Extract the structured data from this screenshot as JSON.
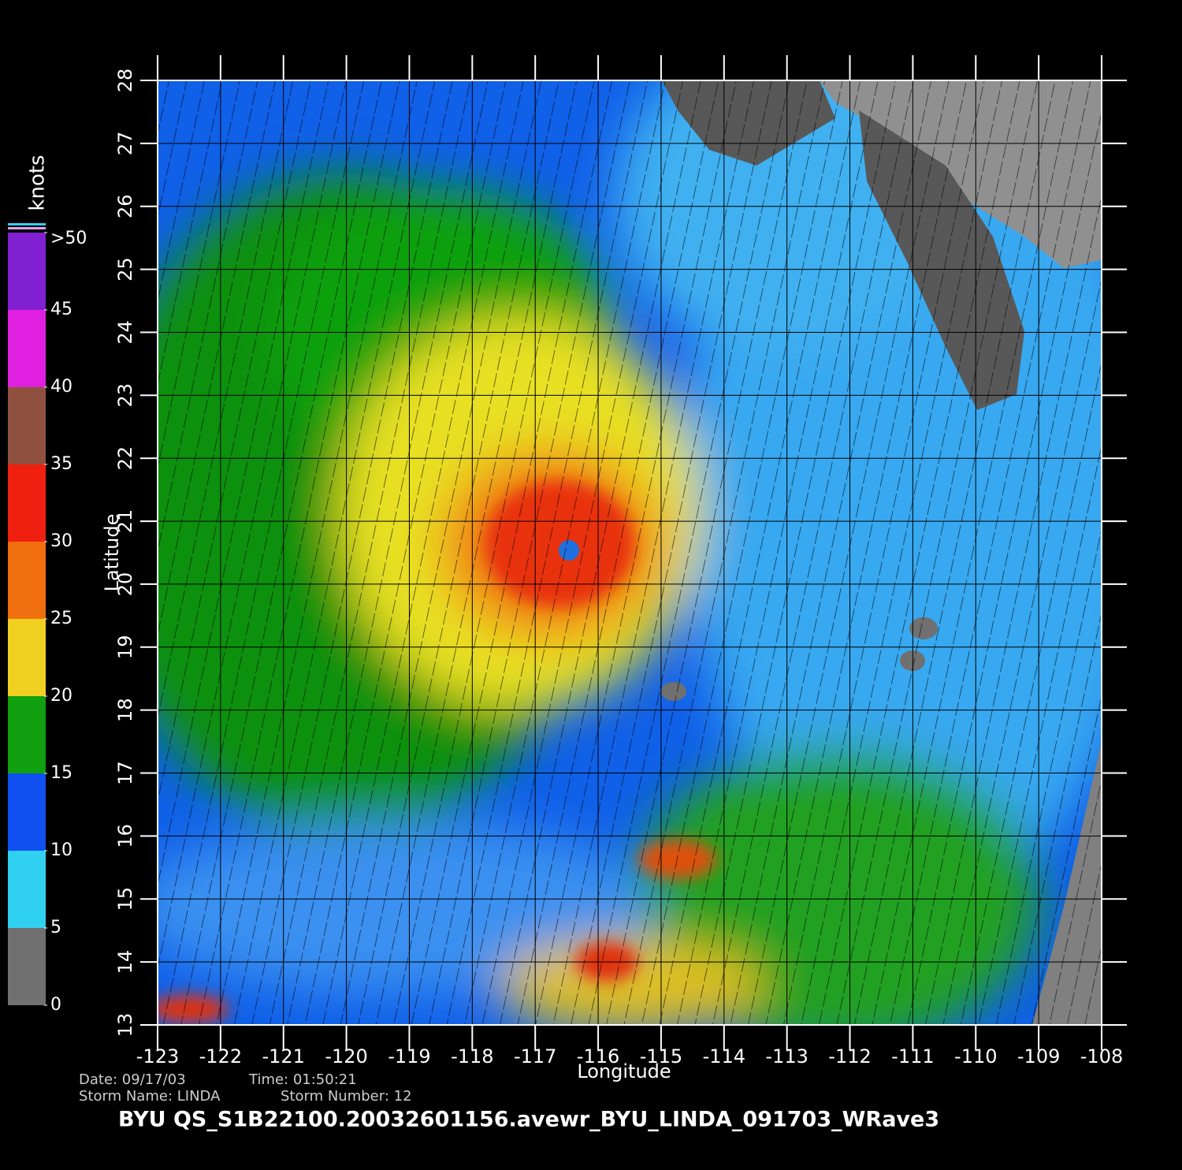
{
  "map": {
    "xlabel": "Longitude",
    "ylabel": "Latitude",
    "xlim": [
      -123,
      -108
    ],
    "ylim": [
      13,
      28
    ],
    "xticks": [
      -123,
      -122,
      -121,
      -120,
      -119,
      -118,
      -117,
      -116,
      -115,
      -114,
      -113,
      -112,
      -111,
      -110,
      -109,
      -108
    ],
    "yticks": [
      13,
      14,
      15,
      16,
      17,
      18,
      19,
      20,
      21,
      22,
      23,
      24,
      25,
      26,
      27,
      28
    ]
  },
  "colorbar": {
    "label": "knots",
    "lim": [
      0,
      50
    ],
    "ticks": [
      0,
      5,
      10,
      15,
      20,
      25,
      30,
      35,
      40,
      45,
      {
        "value": 50,
        "label": ">50"
      }
    ],
    "colors": [
      "#707070",
      "#30d0f0",
      "#1050f0",
      "#10a010",
      "#f0d020",
      "#f07010",
      "#f02010",
      "#905040",
      "#e020e0",
      "#8020d0"
    ]
  },
  "info": {
    "date": "Date: 09/17/03",
    "time": "Time: 01:50:21",
    "storm_name": "Storm Name: LINDA",
    "storm_number": "Storm Number: 12"
  },
  "filename": "BYU  QS_S1B22100.20032601156.avewr_BYU_LINDA_091703_WRave3"
}
